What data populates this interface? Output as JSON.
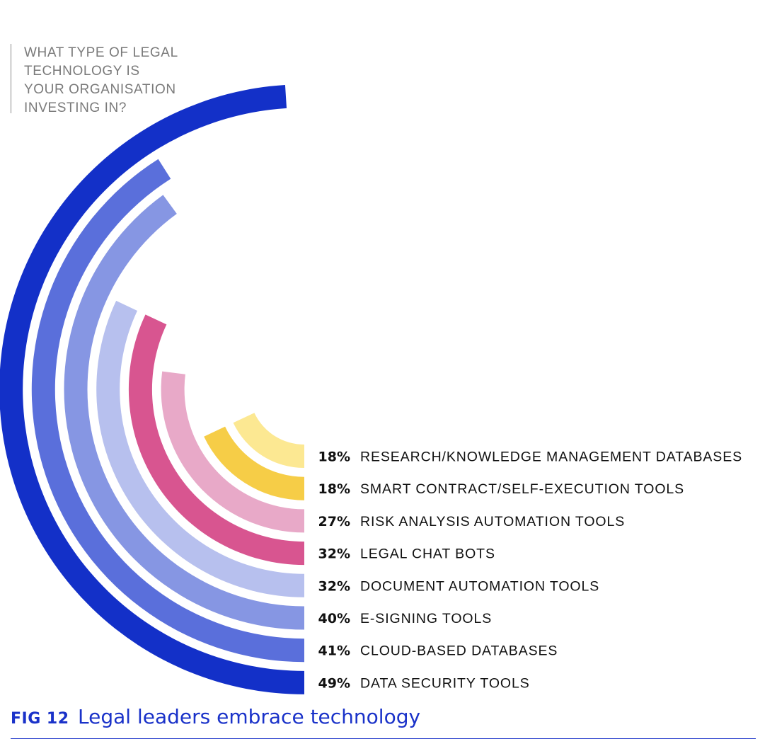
{
  "question": {
    "lines": [
      "WHAT TYPE OF LEGAL",
      "TECHNOLOGY IS",
      "YOUR ORGANISATION",
      "INVESTING IN?"
    ]
  },
  "figure": {
    "number": "FIG 12",
    "title": "Legal leaders embrace technology"
  },
  "chart_data": {
    "type": "radial-bar",
    "max": 100,
    "items": [
      {
        "label": "RESEARCH/KNOWLEDGE MANAGEMENT DATABASES",
        "value": 18,
        "value_label": "18%",
        "color": "#fce892"
      },
      {
        "label": "SMART CONTRACT/SELF-EXECUTION TOOLS",
        "value": 18,
        "value_label": "18%",
        "color": "#f6cd47"
      },
      {
        "label": "RISK ANALYSIS AUTOMATION TOOLS",
        "value": 27,
        "value_label": "27%",
        "color": "#e8a9c8"
      },
      {
        "label": "LEGAL CHAT BOTS",
        "value": 32,
        "value_label": "32%",
        "color": "#d85590"
      },
      {
        "label": "DOCUMENT AUTOMATION TOOLS",
        "value": 32,
        "value_label": "32%",
        "color": "#b7c0ee"
      },
      {
        "label": "E-SIGNING TOOLS",
        "value": 40,
        "value_label": "40%",
        "color": "#8696e3"
      },
      {
        "label": "CLOUD-BASED DATABASES",
        "value": 41,
        "value_label": "41%",
        "color": "#5a6fdb"
      },
      {
        "label": "DATA SECURITY TOOLS",
        "value": 49,
        "value_label": "49%",
        "color": "#1330c8"
      }
    ]
  }
}
